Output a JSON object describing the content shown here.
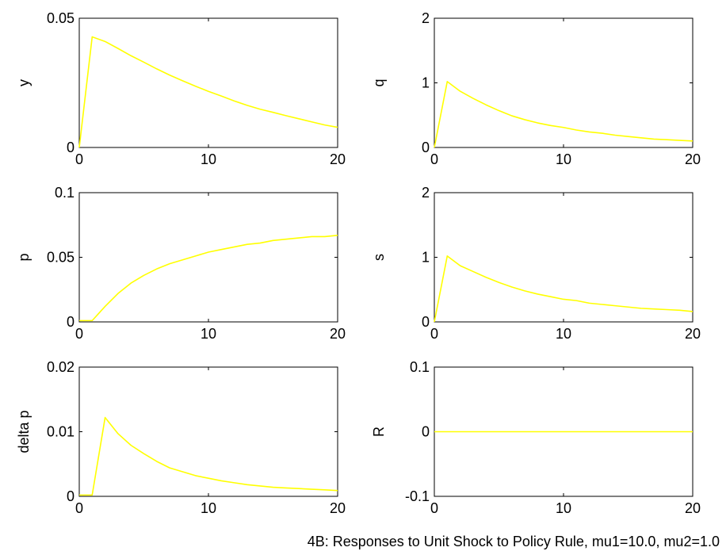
{
  "caption": "4B: Responses to Unit Shock to Policy Rule, mu1=10.0, mu2=1.0",
  "line_color": "#ffff00",
  "chart_data": [
    {
      "type": "line",
      "ylabel": "y",
      "xlim": [
        0,
        20
      ],
      "ylim": [
        0,
        0.05
      ],
      "xticks": [
        0,
        10,
        20
      ],
      "xtick_labels": [
        "0",
        "10",
        "20"
      ],
      "yticks": [
        0,
        0.05
      ],
      "ytick_labels": [
        "0",
        "0.05"
      ],
      "x": [
        0,
        1,
        2,
        3,
        4,
        5,
        6,
        7,
        8,
        9,
        10,
        11,
        12,
        13,
        14,
        15,
        16,
        17,
        18,
        19,
        20
      ],
      "values": [
        0,
        0.0428,
        0.041,
        0.0383,
        0.0355,
        0.033,
        0.0304,
        0.028,
        0.0258,
        0.0237,
        0.0217,
        0.0199,
        0.018,
        0.0163,
        0.0148,
        0.0136,
        0.0123,
        0.0111,
        0.0099,
        0.0087,
        0.0078
      ]
    },
    {
      "type": "line",
      "ylabel": "q",
      "xlim": [
        0,
        20
      ],
      "ylim": [
        0,
        2
      ],
      "xticks": [
        0,
        10,
        20
      ],
      "xtick_labels": [
        "0",
        "10",
        "20"
      ],
      "yticks": [
        0,
        1,
        2
      ],
      "ytick_labels": [
        "0",
        "1",
        "2"
      ],
      "x": [
        0,
        1,
        2,
        3,
        4,
        5,
        6,
        7,
        8,
        9,
        10,
        11,
        12,
        13,
        14,
        15,
        16,
        17,
        18,
        19,
        20
      ],
      "values": [
        0,
        1.02,
        0.87,
        0.76,
        0.66,
        0.57,
        0.49,
        0.43,
        0.38,
        0.34,
        0.31,
        0.27,
        0.24,
        0.22,
        0.19,
        0.17,
        0.15,
        0.13,
        0.12,
        0.11,
        0.1
      ]
    },
    {
      "type": "line",
      "ylabel": "p",
      "xlim": [
        0,
        20
      ],
      "ylim": [
        0,
        0.1
      ],
      "xticks": [
        0,
        10,
        20
      ],
      "xtick_labels": [
        "0",
        "10",
        "20"
      ],
      "yticks": [
        0,
        0.05,
        0.1
      ],
      "ytick_labels": [
        "0",
        "0.05",
        "0.1"
      ],
      "x": [
        0,
        1,
        2,
        3,
        4,
        5,
        6,
        7,
        8,
        9,
        10,
        11,
        12,
        13,
        14,
        15,
        16,
        17,
        18,
        19,
        20
      ],
      "values": [
        0.001,
        0.001,
        0.012,
        0.022,
        0.03,
        0.036,
        0.041,
        0.045,
        0.048,
        0.051,
        0.054,
        0.056,
        0.058,
        0.06,
        0.061,
        0.063,
        0.064,
        0.065,
        0.066,
        0.066,
        0.067
      ]
    },
    {
      "type": "line",
      "ylabel": "s",
      "xlim": [
        0,
        20
      ],
      "ylim": [
        0,
        2
      ],
      "xticks": [
        0,
        10,
        20
      ],
      "xtick_labels": [
        "0",
        "10",
        "20"
      ],
      "yticks": [
        0,
        1,
        2
      ],
      "ytick_labels": [
        "0",
        "1",
        "2"
      ],
      "x": [
        0,
        1,
        2,
        3,
        4,
        5,
        6,
        7,
        8,
        9,
        10,
        11,
        12,
        13,
        14,
        15,
        16,
        17,
        18,
        19,
        20
      ],
      "values": [
        0,
        1.02,
        0.87,
        0.78,
        0.69,
        0.61,
        0.54,
        0.48,
        0.43,
        0.39,
        0.35,
        0.33,
        0.29,
        0.27,
        0.25,
        0.23,
        0.21,
        0.2,
        0.19,
        0.18,
        0.16
      ]
    },
    {
      "type": "line",
      "ylabel": "delta p",
      "xlim": [
        0,
        20
      ],
      "ylim": [
        0,
        0.02
      ],
      "xticks": [
        0,
        10,
        20
      ],
      "xtick_labels": [
        "0",
        "10",
        "20"
      ],
      "yticks": [
        0,
        0.01,
        0.02
      ],
      "ytick_labels": [
        "0",
        "0.01",
        "0.02"
      ],
      "x": [
        0,
        1,
        2,
        3,
        4,
        5,
        6,
        7,
        8,
        9,
        10,
        11,
        12,
        13,
        14,
        15,
        16,
        17,
        18,
        19,
        20
      ],
      "values": [
        0.0002,
        0.0002,
        0.0122,
        0.0097,
        0.0079,
        0.0066,
        0.0054,
        0.0044,
        0.0038,
        0.0032,
        0.0028,
        0.0024,
        0.0021,
        0.0018,
        0.0016,
        0.0014,
        0.0013,
        0.0012,
        0.0011,
        0.001,
        0.0009
      ]
    },
    {
      "type": "line",
      "ylabel": "R",
      "xlim": [
        0,
        20
      ],
      "ylim": [
        -0.1,
        0.1
      ],
      "xticks": [
        0,
        10,
        20
      ],
      "xtick_labels": [
        "0",
        "10",
        "20"
      ],
      "yticks": [
        -0.1,
        0,
        0.1
      ],
      "ytick_labels": [
        "-0.1",
        "0",
        "0.1"
      ],
      "x": [
        0,
        1,
        2,
        3,
        4,
        5,
        6,
        7,
        8,
        9,
        10,
        11,
        12,
        13,
        14,
        15,
        16,
        17,
        18,
        19,
        20
      ],
      "values": [
        0,
        0,
        0,
        0,
        0,
        0,
        0,
        0,
        0,
        0,
        0,
        0,
        0,
        0,
        0,
        0,
        0,
        0,
        0,
        0,
        0
      ]
    }
  ]
}
